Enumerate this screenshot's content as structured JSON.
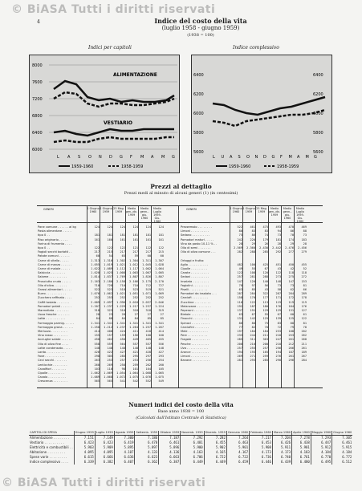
{
  "watermark": "© BiASA Tutti i diritti riservati",
  "page_mark": "4",
  "header": {
    "title": "Indice del costo della vita",
    "period": "(luglio 1958 - giugno 1959)",
    "base": "(1938 = 100)"
  },
  "charts": {
    "left": {
      "title": "Indici per capitoli",
      "y_ticks": [
        "8000",
        "7600",
        "7200",
        "6800",
        "6400",
        "6000"
      ],
      "x_ticks": [
        "L",
        "A",
        "S",
        "O",
        "N",
        "D",
        "G",
        "F",
        "M",
        "A",
        "M",
        "G"
      ],
      "labels": {
        "upper": "ALIMENTAZIONE",
        "lower": "VESTIARIO"
      },
      "legend": [
        {
          "label": "1959-1960"
        },
        {
          "label": "1958-1959"
        }
      ]
    },
    "right": {
      "title": "Indice complessivo",
      "y_ticks": [
        "6400",
        "6200",
        "6000",
        "5800",
        "5600"
      ],
      "y_ticks_right": [
        "6400",
        "6200",
        "6000",
        "5800",
        "5600"
      ],
      "x_ticks": [
        "L",
        "U",
        "A",
        "S",
        "O",
        "N",
        "D",
        "G",
        "F",
        "M",
        "A",
        "M",
        "G"
      ],
      "legend": [
        {
          "label": "1959-1960"
        },
        {
          "label": "1958-1959"
        }
      ]
    }
  },
  "prices": {
    "title": "Prezzi al dettaglio",
    "subtitle": "Prezzi medi al minuto di alcuni generi (1) (in centesimi)",
    "left_header": [
      "GENERI",
      "1 Giugno 1960",
      "1 Giugno 1959",
      "25 Mag. 1959",
      "Media gen.-dic. 1959",
      "Media genn.-giu. 1960",
      "Media Luglio 1959-Giu. 1960"
    ],
    "right_header": [
      "GENERI",
      "1 Giugno 1960",
      "1 Giugno 1959",
      "25 Mag. 1959",
      "Media gen.-dic. 1959",
      "Media genn.-giu. 1960",
      "Media Luglio 1959-Giu. 1960"
    ],
    "left_rows": [
      [
        "Pane comune . . . . . . al kg",
        "124",
        "124",
        "124",
        "124",
        "124",
        "124"
      ],
      [
        "Pasta alimentare . . . . .",
        "",
        "",
        "",
        "",
        "",
        ""
      ],
      [
        "               tipo 0 . .",
        "181",
        "181",
        "181",
        "181",
        "181",
        "181"
      ],
      [
        "Riso originario . . . . .",
        "161",
        "160",
        "161",
        "161",
        "161",
        "161"
      ],
      [
        "Farina di frumento . . . .",
        "",
        "",
        "",
        "",
        "",
        ""
      ],
      [
        "               tipo 0 . .",
        "122",
        "122",
        "122",
        "121",
        "122",
        "122"
      ],
      [
        "Fagioli secchi borlotti . .",
        "217",
        "215",
        "217",
        "217",
        "217",
        "215"
      ],
      [
        "Patate comuni . . . . . .",
        "60",
        "54",
        "65",
        "59",
        "60",
        "60"
      ],
      [
        "Carne di vitello . . . . .",
        "1.313",
        "1.316",
        "1.302",
        "1.304",
        "1.311",
        "1.307"
      ],
      [
        "Carne di manzo . . . . . .",
        "1.055",
        "1.019",
        "1.021",
        "1.012",
        "1.045",
        "1.028"
      ],
      [
        "Carne di maiale . . . . .",
        "1.022",
        "1.089",
        "1.112",
        "1.117",
        "1.002",
        "1.064"
      ],
      [
        "Salsiccia . . . . . . . .",
        "1.020",
        "1.025",
        "1.008",
        "1.003",
        "1.007",
        "1.005"
      ],
      [
        "Salame . . . . . . . . . .",
        "1.814",
        "1.837",
        "1.769",
        "1.807",
        "1.826",
        "1.807"
      ],
      [
        "Prosciutto crudo . . . . .",
        "2.163",
        "2.180",
        "2.158",
        "2.166",
        "2.175",
        "2.170"
      ],
      [
        "Olio d'oliva . . . . . . .",
        "710",
        "728",
        "710",
        "710",
        "712",
        "727"
      ],
      [
        "Grassi alimentari . . . . .",
        "522",
        "523",
        "518",
        "523",
        "519",
        "521"
      ],
      [
        "Burro . . . . . . . . . . .",
        "1.076",
        "1.062",
        "1.021",
        "1.051",
        "1.071",
        "1.069"
      ],
      [
        "Zucchero raffinato . . . .",
        "252",
        "253",
        "252",
        "252",
        "252",
        "252"
      ],
      [
        "Caffè tostato . . . . . . .",
        "2.009",
        "2.097",
        "1.996",
        "2.018",
        "2.037",
        "2.046"
      ],
      [
        "Pomodori pelati . . . . . .",
        "1.207",
        "1.237",
        "1.229",
        "1.217",
        "1.237",
        "1.224"
      ],
      [
        "Marmellata . . . . . . . .",
        "318",
        "323",
        "318",
        "318",
        "318",
        "319"
      ],
      [
        "Uova fresche . . . . . . .",
        "28",
        "23",
        "28",
        "27",
        "27",
        "27"
      ],
      [
        "Latte . . . . . . . . . . .",
        "84",
        "88",
        "84",
        "84",
        "85",
        "85"
      ],
      [
        "Formaggio parmig. . . . . .",
        "1.341",
        "1.341",
        "1.341",
        "1.341",
        "1.341",
        "1.341"
      ],
      [
        "Formaggio grana . . . . . .",
        "1.250",
        "1.212",
        "1.237",
        "1.264",
        "1.257",
        "1.267"
      ],
      [
        "Merluzzo . . . . . . . . .",
        "414",
        "408",
        "424",
        "411",
        "418",
        "414"
      ],
      [
        "Vino rosso . . . . . . . .",
        "155",
        "157",
        "159",
        "156",
        "160",
        "160"
      ],
      [
        "Acciughe salate . . . . . .",
        "450",
        "462",
        "450",
        "449",
        "465",
        "455"
      ],
      [
        "Olio di oliva fine . . . .",
        "558",
        "559",
        "564",
        "557",
        "557",
        "556"
      ],
      [
        "Latte condensato . . . . .",
        "148",
        "148",
        "148",
        "148",
        "148",
        "148"
      ],
      [
        "Lardo . . . . . . . . . . .",
        "426",
        "422",
        "427",
        "421",
        "428",
        "427"
      ],
      [
        "Fave . . . . . . . . . . .",
        "298",
        "305",
        "285",
        "295",
        "297",
        "293"
      ],
      [
        "Ceci secchi . . . . . . .",
        "263",
        "253",
        "257",
        "253",
        "256",
        "254"
      ],
      [
        "Lenticchie . . . . . . . .",
        "260",
        "269",
        "258",
        "259",
        "262",
        "260"
      ],
      [
        "Cavolfiori . . . . . . . .",
        "103",
        "110",
        "98",
        "101",
        "104",
        "105"
      ],
      [
        "Cipolle . . . . . . . . .",
        "1.062",
        "1.069",
        "1.054",
        "1.064",
        "1.068",
        "1.065"
      ],
      [
        "Cavolo . . . . . . . . . .",
        "1.089",
        "1.068",
        "1.072",
        "1.075",
        "1.076",
        "1.075"
      ],
      [
        "Crescenza . . . . . . . .",
        "565",
        "565",
        "541",
        "542",
        "552",
        "549"
      ]
    ],
    "right_rows": [
      [
        "Prezzemolo . . . . . . . .",
        "522",
        "461",
        "475",
        "493",
        "470",
        "469"
      ],
      [
        "Limoni . . . . . . . . . .",
        "80",
        "83",
        "83",
        "94",
        "86",
        "88"
      ],
      [
        "Sedano . . . . . . . . . .",
        "75",
        "86",
        "74",
        "73",
        "70",
        "73"
      ],
      [
        "Pomodori maturi . . . . .",
        "242",
        "220",
        "179",
        "181",
        "174",
        "183"
      ],
      [
        "Vino da pasto 10-11 % . .",
        "28",
        "29",
        "26",
        "28",
        "29",
        "28"
      ],
      [
        "Olio di semi . . . . . . .",
        "2.569",
        "2.360",
        "2.430",
        "2.442",
        "2.476",
        "2.456"
      ],
      [
        "Olio di oliva comune . . .",
        "282",
        "288",
        "285",
        "292",
        "277",
        "279"
      ],
      [
        "",
        "",
        "",
        "",
        "",
        "",
        ""
      ],
      [
        "Ortaggi e frutta:",
        "",
        "",
        "",
        "",
        "",
        ""
      ],
      [
        "Aglio . . . . . . . . . . .",
        "482",
        "100",
        "425",
        "451",
        "450",
        "455"
      ],
      [
        "Cipolle . . . . . . . . .",
        "49",
        "55",
        "67",
        "43",
        "42",
        "52"
      ],
      [
        "Carote . . . . . . . . . .",
        "122",
        "108",
        "120",
        "122",
        "118",
        "118"
      ],
      [
        "Sedani . . . . . . . . . .",
        "257",
        "281",
        "288",
        "273",
        "275",
        "272"
      ],
      [
        "Insalata . . . . . . . . .",
        "147",
        "120",
        "140",
        "148",
        "147",
        "153"
      ],
      [
        "Fagiolini . . . . . . . . .",
        "78",
        "97",
        "56",
        "73",
        "73",
        "81"
      ],
      [
        "Piselli . . . . . . . . . .",
        "63",
        "85",
        "43",
        "58",
        "62",
        "66"
      ],
      [
        "Pomodori da insalata . . .",
        "287",
        "284",
        "322",
        "287",
        "284",
        "289"
      ],
      [
        "Carciofi . . . . . . . . .",
        "158",
        "170",
        "177",
        "171",
        "172",
        "178"
      ],
      [
        "Zucchine . . . . . . . . .",
        "116",
        "122",
        "113",
        "119",
        "119",
        "119"
      ],
      [
        "Melanzane . . . . . . . .",
        "192",
        "187",
        "180",
        "176",
        "184",
        "176"
      ],
      [
        "Peperoni . . . . . . . . .",
        "137",
        "191",
        "129",
        "129",
        "131",
        "127"
      ],
      [
        "Bietole . . . . . . . . . .",
        "63",
        "67",
        "55",
        "67",
        "60",
        "61"
      ],
      [
        "Finocchi . . . . . . . . .",
        "131",
        "142",
        "125",
        "139",
        "125",
        "122"
      ],
      [
        "Spinaci . . . . . . . . . .",
        "86",
        "80",
        "75",
        "83",
        "80",
        "81"
      ],
      [
        "Carciofini . . . . . . . .",
        "77",
        "82",
        "70",
        "72",
        "79",
        "78"
      ],
      [
        "Mele . . . . . . . . . . .",
        "197",
        "184",
        "184",
        "233",
        "188",
        "202"
      ],
      [
        "Pere . . . . . . . . . . .",
        "233",
        "244",
        "211",
        "218",
        "253",
        "262"
      ],
      [
        "Fragole . . . . . . . . . .",
        "285",
        "311",
        "363",
        "247",
        "261",
        "268"
      ],
      [
        "Pesche . . . . . . . . . .",
        "200",
        "210",
        "200",
        "210",
        "212",
        "211"
      ],
      [
        "Uva . . . . . . . . . . . .",
        "257",
        "255",
        "257",
        "256",
        "266",
        "261"
      ],
      [
        "Arance . . . . . . . . . .",
        "194",
        "193",
        "165",
        "194",
        "187",
        "189"
      ],
      [
        "Limoni . . . . . . . . . .",
        "269",
        "271",
        "259",
        "276",
        "261",
        "267"
      ],
      [
        "Banane . . . . . . . . . .",
        "281",
        "293",
        "285",
        "290",
        "296",
        "284"
      ]
    ]
  },
  "index": {
    "title": "Numeri indici del costo della vita",
    "base": "Base anno 1938 = 100",
    "source": "(Calcolati dall'Istituto Centrale di Statistica)",
    "columns": [
      "CAPITOLI DI SPESA",
      "Giugno 1959",
      "Luglio 1959",
      "Agosto 1959",
      "Settemb. 1959",
      "Ottobre 1959",
      "Novemb. 1959",
      "Dicemb. 1959",
      "Gennaio 1960",
      "Febbraio 1960",
      "Marzo 1960",
      "Aprile 1960",
      "Maggio 1960",
      "Giugno 1960"
    ],
    "rows": [
      [
        "Alimentazione . . . . . . . .",
        "7.151",
        "7.149",
        "7.300",
        "7.186",
        "7.187",
        "7.292",
        "7.282",
        "7.264",
        "7.217",
        "7.204",
        "7.278",
        "7.293",
        "7.305"
      ],
      [
        "Vestiario . . . . . . . . . .",
        "6.423",
        "6.423",
        "6.419",
        "6.478",
        "6.461",
        "6.481",
        "6.455",
        "6.463",
        "6.453",
        "6.426",
        "6.438",
        "6.447",
        "6.461"
      ],
      [
        "Elettricità e combustibili . .",
        "5.903",
        "5.909",
        "5.895",
        "5.897",
        "5.896",
        "5.900",
        "5.902",
        "5.901",
        "5.908",
        "5.911",
        "5.901",
        "5.912",
        "5.915"
      ],
      [
        "Abitazione . . . . . . . . .",
        "4.095",
        "4.095",
        "4.107",
        "4.133",
        "4.136",
        "4.163",
        "4.165",
        "4.167",
        "4.173",
        "4.173",
        "4.183",
        "4.184",
        "4.184"
      ],
      [
        "Spese varie . . . . . . . . .",
        "6.615",
        "6.666",
        "6.636",
        "6.623",
        "6.663",
        "6.706",
        "6.722",
        "6.722",
        "6.736",
        "6.740",
        "6.761",
        "6.770",
        "6.772"
      ],
      [
        "  Indice complessivo . . . .",
        "6.339",
        "6.382",
        "6.407",
        "6.362",
        "6.387",
        "6.449",
        "6.449",
        "6.459",
        "6.446",
        "6.439",
        "6.480",
        "6.495",
        "6.512"
      ]
    ]
  }
}
